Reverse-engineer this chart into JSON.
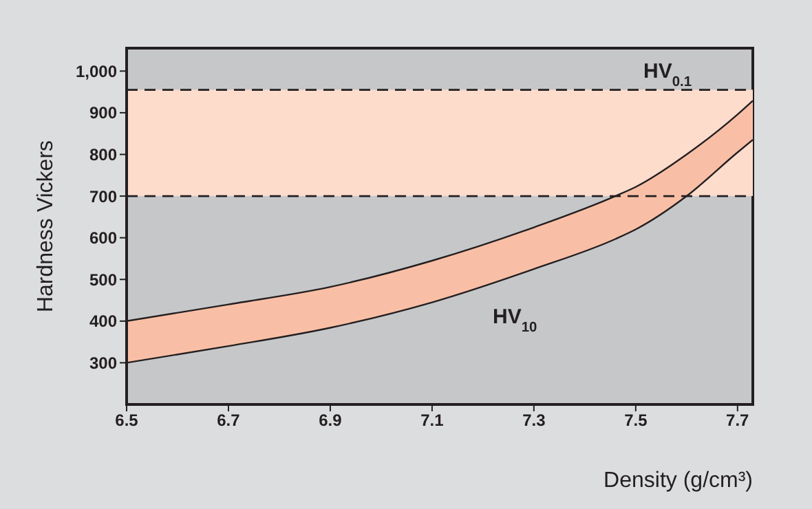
{
  "chart_data": {
    "type": "line",
    "xlabel": "Density (g/cm³)",
    "ylabel": "Hardness Vickers",
    "x": [
      6.5,
      6.7,
      6.9,
      7.1,
      7.3,
      7.46,
      7.5,
      7.6,
      7.7,
      7.73
    ],
    "series": [
      {
        "color": "#231f20",
        "values": [
          400,
          440,
          482,
          545,
          625,
          700,
          722,
          800,
          896,
          929
        ],
        "lower": [
          300,
          340,
          384,
          445,
          525,
          597,
          620,
          700,
          805,
          835
        ],
        "upper": [
          400,
          440,
          482,
          545,
          625,
          700,
          722,
          800,
          896,
          929
        ]
      },
      {
        "color": "#231f20",
        "values": [
          300,
          340,
          384,
          445,
          525,
          597,
          620,
          700,
          805,
          835
        ]
      }
    ],
    "xlim": [
      6.5,
      7.73
    ],
    "xticks": [
      6.5,
      6.7,
      6.9,
      7.1,
      7.3,
      7.5,
      7.7
    ],
    "ylim": [
      200,
      1055
    ],
    "yticks": [
      300,
      400,
      500,
      600,
      700,
      800,
      900,
      {
        "value": 1000,
        "label": "1,000"
      }
    ],
    "bands": [
      {
        "axis": "y",
        "from": 700,
        "to": 955,
        "label": "HV$_{0.1}$",
        "color": "#fddccc"
      }
    ],
    "ref_lines": [
      {
        "axis": "y",
        "value": 955,
        "line_style": "dashed",
        "color": "#231f20"
      },
      {
        "axis": "y",
        "value": 700,
        "line_style": "dashed",
        "color": "#231f20"
      }
    ],
    "annotations": [
      "HV$_{10}$"
    ],
    "grid": false
  }
}
